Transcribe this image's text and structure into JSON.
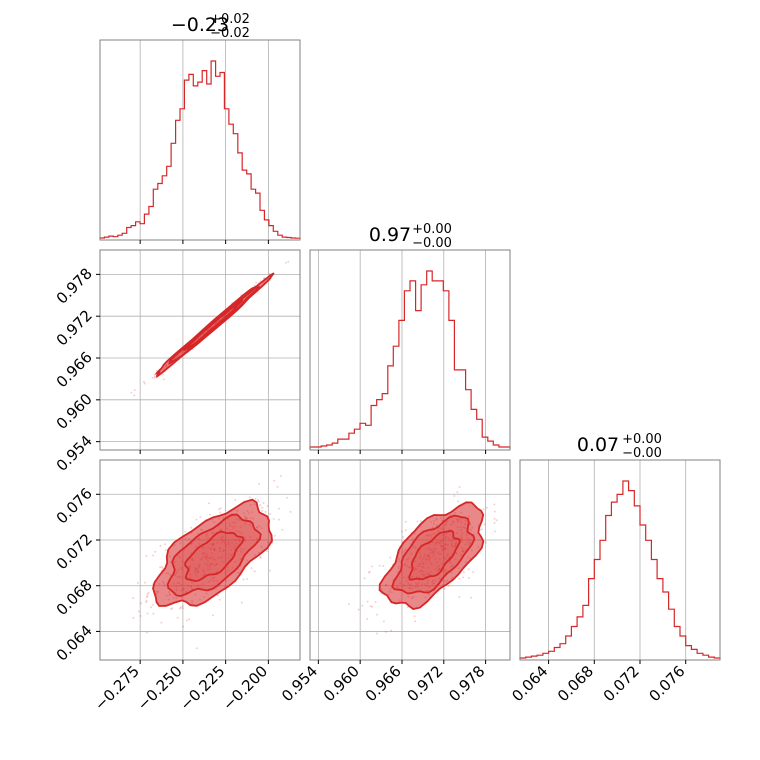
{
  "colors": {
    "main": "#d62728",
    "fill": "#f1b7b8",
    "grid": "#b0b0b0",
    "frame": "#808080"
  },
  "chart_data": {
    "type": "corner",
    "parameters": [
      {
        "title_main": "−0.23",
        "title_plus": "+0.02",
        "title_minus": "−0.02"
      },
      {
        "title_main": "0.97",
        "title_plus": "+0.00",
        "title_minus": "−0.00"
      },
      {
        "title_main": "0.07",
        "title_plus": "+0.00",
        "title_minus": "−0.00"
      }
    ],
    "axes": [
      {
        "range": [
          -0.2985,
          -0.1815
        ],
        "ticks": [
          -0.275,
          -0.25,
          -0.225,
          -0.2
        ],
        "tick_labels": [
          "−0.275",
          "−0.250",
          "−0.225",
          "−0.200"
        ]
      },
      {
        "range": [
          0.9528,
          0.9815
        ],
        "ticks": [
          0.954,
          0.96,
          0.966,
          0.972,
          0.978
        ],
        "tick_labels": [
          "0.954",
          "0.960",
          "0.966",
          "0.972",
          "0.978"
        ]
      },
      {
        "range": [
          0.0615,
          0.079
        ],
        "ticks": [
          0.064,
          0.068,
          0.072,
          0.076
        ],
        "tick_labels": [
          "0.064",
          "0.068",
          "0.072",
          "0.076"
        ]
      }
    ],
    "marginal_histograms": [
      {
        "param": 0,
        "center": -0.2325,
        "sigma": 0.0161,
        "bin_heights": [
          0.005,
          0.01,
          0.015,
          0.012,
          0.02,
          0.03,
          0.06,
          0.07,
          0.09,
          0.08,
          0.13,
          0.17,
          0.26,
          0.29,
          0.33,
          0.38,
          0.5,
          0.62,
          0.68,
          0.83,
          0.86,
          0.8,
          0.82,
          0.88,
          0.81,
          0.93,
          0.85,
          0.87,
          0.68,
          0.6,
          0.55,
          0.45,
          0.36,
          0.34,
          0.26,
          0.24,
          0.15,
          0.1,
          0.07,
          0.04,
          0.02,
          0.01,
          0.008,
          0.005,
          0.004
        ]
      },
      {
        "param": 1,
        "center": 0.9706,
        "sigma": 0.0034,
        "bin_heights": [
          0.01,
          0.01,
          0.015,
          0.02,
          0.03,
          0.05,
          0.05,
          0.08,
          0.1,
          0.13,
          0.12,
          0.22,
          0.25,
          0.28,
          0.42,
          0.52,
          0.65,
          0.8,
          0.85,
          0.7,
          0.83,
          0.9,
          0.85,
          0.85,
          0.8,
          0.65,
          0.4,
          0.4,
          0.3,
          0.2,
          0.15,
          0.06,
          0.04,
          0.02,
          0.01,
          0.01
        ]
      },
      {
        "param": 2,
        "center": 0.0706,
        "sigma": 0.0021,
        "bin_heights": [
          0.005,
          0.01,
          0.015,
          0.02,
          0.03,
          0.04,
          0.06,
          0.08,
          0.12,
          0.17,
          0.22,
          0.28,
          0.42,
          0.52,
          0.62,
          0.75,
          0.82,
          0.86,
          0.93,
          0.88,
          0.8,
          0.7,
          0.62,
          0.52,
          0.42,
          0.35,
          0.26,
          0.17,
          0.12,
          0.07,
          0.05,
          0.03,
          0.02,
          0.01,
          0.005
        ]
      }
    ],
    "joint_densities": [
      {
        "x_param": 0,
        "y_param": 1,
        "correlation": 0.995
      },
      {
        "x_param": 0,
        "y_param": 2,
        "correlation": 0.62
      },
      {
        "x_param": 1,
        "y_param": 2,
        "correlation": 0.62
      }
    ],
    "contour_levels_sigma": [
      1.0,
      1.6,
      2.1
    ],
    "grid": true
  }
}
